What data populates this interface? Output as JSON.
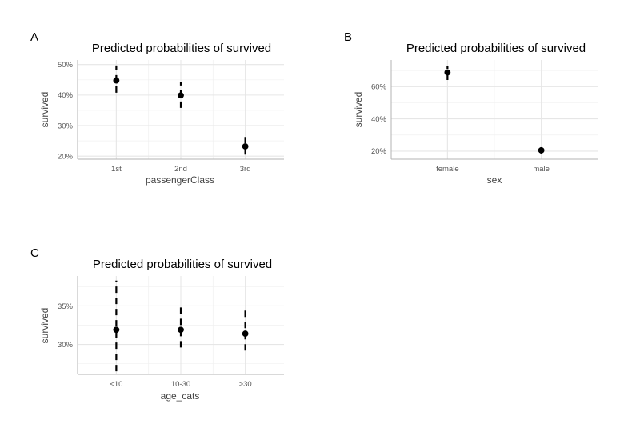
{
  "chart_data": [
    {
      "panel_tag": "A",
      "type": "scatter",
      "title": "Predicted probabilities of survived",
      "xlabel": "passengerClass",
      "ylabel": "survived",
      "categories": [
        "1st",
        "2nd",
        "3rd"
      ],
      "values": [
        0.448,
        0.399,
        0.232
      ],
      "ci_lower": [
        0.408,
        0.358,
        0.205
      ],
      "ci_upper": [
        0.497,
        0.444,
        0.266
      ],
      "ylim": [
        0.19,
        0.515
      ],
      "yticks": [
        0.2,
        0.3,
        0.4,
        0.5
      ],
      "ytick_labels": [
        "20%",
        "30%",
        "40%",
        "50%"
      ],
      "grid": true,
      "point_color": "#000000"
    },
    {
      "panel_tag": "B",
      "type": "scatter",
      "title": "Predicted probabilities of survived",
      "xlabel": "sex",
      "ylabel": "survived",
      "categories": [
        "female",
        "male"
      ],
      "values": [
        0.688,
        0.205
      ],
      "ci_lower": [
        0.641,
        0.185
      ],
      "ci_upper": [
        0.728,
        0.228
      ],
      "ylim": [
        0.15,
        0.765
      ],
      "yticks": [
        0.2,
        0.4,
        0.6
      ],
      "ytick_labels": [
        "20%",
        "40%",
        "60%"
      ],
      "grid": true,
      "point_color": "#000000"
    },
    {
      "panel_tag": "C",
      "type": "scatter",
      "title": "Predicted probabilities of survived",
      "xlabel": "age_cats",
      "ylabel": "survived",
      "categories": [
        "<10",
        "10-30",
        ">30"
      ],
      "values": [
        0.319,
        0.319,
        0.314
      ],
      "ci_lower": [
        0.265,
        0.296,
        0.292
      ],
      "ci_upper": [
        0.383,
        0.354,
        0.35
      ],
      "ylim": [
        0.261,
        0.389
      ],
      "yticks": [
        0.3,
        0.35
      ],
      "ytick_labels": [
        "30%",
        "35%"
      ],
      "grid": true,
      "point_color": "#000000"
    }
  ]
}
